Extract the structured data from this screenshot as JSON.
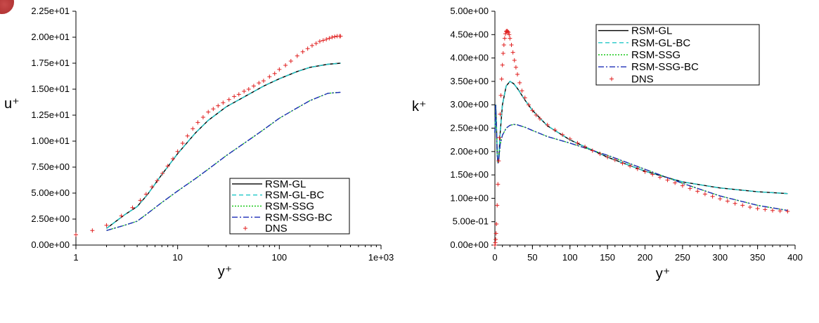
{
  "colors": {
    "RSM-GL": "#000000",
    "RSM-GL-BC": "#20c8c8",
    "RSM-SSG": "#18c818",
    "RSM-SSG-BC": "#1f2fb8",
    "DNS": "#e02020"
  },
  "chart_data": [
    {
      "type": "line",
      "xscale": "log",
      "xlim": [
        1,
        1000
      ],
      "ylim": [
        0,
        22.5
      ],
      "xticks": [
        1,
        10,
        100,
        1000
      ],
      "xtick_labels": [
        "1",
        "10",
        "100",
        "1e+03"
      ],
      "yticks": [
        0,
        2.5,
        5,
        7.5,
        10,
        12.5,
        15,
        17.5,
        20,
        22.5
      ],
      "ytick_labels": [
        "0.00e+00",
        "2.50e+00",
        "5.00e+00",
        "7.50e+00",
        "1.00e+01",
        "1.25e+01",
        "1.50e+01",
        "1.75e+01",
        "2.00e+01",
        "2.25e+01"
      ],
      "xlabel": "y⁺",
      "ylabel": "u⁺",
      "legend_position": "lower-right",
      "legend": [
        "RSM-GL",
        "RSM-GL-BC",
        "RSM-SSG",
        "RSM-SSG-BC",
        "DNS"
      ],
      "series": [
        {
          "name": "RSM-GL",
          "style": "solid",
          "x": [
            2,
            3,
            4,
            5,
            7,
            10,
            15,
            20,
            30,
            50,
            70,
            100,
            150,
            200,
            300,
            400
          ],
          "y": [
            1.6,
            2.9,
            3.7,
            4.8,
            6.8,
            8.8,
            10.8,
            12.0,
            13.3,
            14.5,
            15.3,
            16.0,
            16.7,
            17.1,
            17.4,
            17.5
          ]
        },
        {
          "name": "RSM-GL-BC",
          "style": "dash",
          "x": [
            2,
            3,
            4,
            5,
            7,
            10,
            15,
            20,
            30,
            50,
            70,
            100,
            150,
            200,
            300,
            400
          ],
          "y": [
            1.6,
            2.9,
            3.7,
            4.8,
            6.8,
            8.8,
            10.8,
            12.0,
            13.3,
            14.5,
            15.3,
            16.0,
            16.7,
            17.1,
            17.4,
            17.5
          ]
        },
        {
          "name": "RSM-SSG",
          "style": "dot",
          "x": [
            2,
            3,
            4,
            5,
            7,
            10,
            15,
            20,
            30,
            50,
            70,
            100,
            150,
            200,
            300,
            400
          ],
          "y": [
            1.4,
            1.9,
            2.3,
            3.0,
            4.1,
            5.2,
            6.4,
            7.3,
            8.6,
            10.1,
            11.1,
            12.2,
            13.2,
            13.9,
            14.6,
            14.7
          ]
        },
        {
          "name": "RSM-SSG-BC",
          "style": "dashdot",
          "x": [
            2,
            3,
            4,
            5,
            7,
            10,
            15,
            20,
            30,
            50,
            70,
            100,
            150,
            200,
            300,
            400
          ],
          "y": [
            1.4,
            1.9,
            2.3,
            3.0,
            4.1,
            5.2,
            6.4,
            7.3,
            8.6,
            10.1,
            11.1,
            12.2,
            13.2,
            13.9,
            14.6,
            14.7
          ]
        },
        {
          "name": "DNS",
          "style": "plus",
          "x": [
            1.0,
            1.45,
            2.0,
            2.8,
            3.6,
            4.3,
            4.9,
            5.6,
            6.3,
            7.1,
            8.0,
            9.0,
            10.0,
            11.2,
            12.5,
            14.1,
            15.8,
            17.8,
            20,
            22.4,
            25,
            28,
            32,
            36,
            40,
            45,
            50,
            56,
            63,
            70,
            80,
            90,
            100,
            115,
            130,
            150,
            170,
            190,
            210,
            230,
            250,
            270,
            290,
            310,
            330,
            350,
            370,
            390,
            400
          ],
          "y": [
            1.0,
            1.4,
            1.9,
            2.8,
            3.6,
            4.3,
            4.9,
            5.6,
            6.2,
            6.9,
            7.6,
            8.3,
            9.0,
            9.8,
            10.5,
            11.2,
            11.8,
            12.3,
            12.8,
            13.1,
            13.4,
            13.7,
            14.0,
            14.3,
            14.5,
            14.8,
            15.0,
            15.3,
            15.6,
            15.8,
            16.2,
            16.5,
            16.9,
            17.3,
            17.7,
            18.2,
            18.6,
            18.9,
            19.2,
            19.4,
            19.6,
            19.7,
            19.8,
            19.9,
            20.0,
            20.05,
            20.1,
            20.1,
            20.1
          ]
        }
      ]
    },
    {
      "type": "line",
      "xscale": "linear",
      "xlim": [
        0,
        400
      ],
      "ylim": [
        0,
        5
      ],
      "xticks": [
        0,
        50,
        100,
        150,
        200,
        250,
        300,
        350,
        400
      ],
      "xtick_labels": [
        "0",
        "50",
        "100",
        "150",
        "200",
        "250",
        "300",
        "350",
        "400"
      ],
      "yticks": [
        0,
        0.5,
        1,
        1.5,
        2,
        2.5,
        3,
        3.5,
        4,
        4.5,
        5
      ],
      "ytick_labels": [
        "0.00e+00",
        "5.00e-01",
        "1.00e+00",
        "1.50e+00",
        "2.00e+00",
        "2.50e+00",
        "3.00e+00",
        "3.50e+00",
        "4.00e+00",
        "4.50e+00",
        "5.00e+00"
      ],
      "xlabel": "y⁺",
      "ylabel": "k⁺",
      "legend_position": "upper-center",
      "legend": [
        "RSM-GL",
        "RSM-GL-BC",
        "RSM-SSG",
        "RSM-SSG-BC",
        "DNS"
      ],
      "series": [
        {
          "name": "RSM-GL",
          "style": "solid",
          "x": [
            0,
            1,
            2,
            3,
            4,
            5,
            7,
            10,
            15,
            20,
            25,
            30,
            40,
            50,
            70,
            100,
            150,
            200,
            250,
            300,
            350,
            390
          ],
          "y": [
            2.4,
            3.0,
            2.6,
            2.0,
            1.75,
            1.8,
            2.4,
            3.0,
            3.4,
            3.5,
            3.45,
            3.35,
            3.1,
            2.88,
            2.55,
            2.25,
            1.88,
            1.58,
            1.35,
            1.22,
            1.14,
            1.1
          ]
        },
        {
          "name": "RSM-GL-BC",
          "style": "dash",
          "x": [
            0,
            1,
            2,
            3,
            4,
            5,
            7,
            10,
            15,
            20,
            25,
            30,
            40,
            50,
            70,
            100,
            150,
            200,
            250,
            300,
            350,
            390
          ],
          "y": [
            2.4,
            3.0,
            2.6,
            2.0,
            1.75,
            1.8,
            2.4,
            3.0,
            3.4,
            3.5,
            3.45,
            3.35,
            3.1,
            2.88,
            2.55,
            2.25,
            1.88,
            1.58,
            1.35,
            1.22,
            1.14,
            1.1
          ]
        },
        {
          "name": "RSM-SSG",
          "style": "dot",
          "x": [
            0,
            1,
            2,
            3,
            4,
            5,
            7,
            10,
            15,
            20,
            25,
            30,
            40,
            50,
            70,
            100,
            150,
            200,
            250,
            300,
            350,
            390
          ],
          "y": [
            2.4,
            3.0,
            2.5,
            1.95,
            1.75,
            1.8,
            2.15,
            2.35,
            2.5,
            2.56,
            2.58,
            2.57,
            2.52,
            2.45,
            2.32,
            2.18,
            1.92,
            1.62,
            1.32,
            1.05,
            0.85,
            0.74
          ]
        },
        {
          "name": "RSM-SSG-BC",
          "style": "dashdot",
          "x": [
            0,
            1,
            2,
            3,
            4,
            5,
            7,
            10,
            15,
            20,
            25,
            30,
            40,
            50,
            70,
            100,
            150,
            200,
            250,
            300,
            350,
            390
          ],
          "y": [
            2.4,
            3.0,
            2.5,
            1.95,
            1.75,
            1.8,
            2.15,
            2.35,
            2.5,
            2.56,
            2.58,
            2.57,
            2.52,
            2.45,
            2.32,
            2.18,
            1.92,
            1.62,
            1.32,
            1.05,
            0.85,
            0.74
          ]
        },
        {
          "name": "DNS",
          "style": "plus",
          "x": [
            0,
            0.5,
            1,
            1.5,
            2,
            3,
            4,
            5,
            6,
            7,
            8,
            9,
            10,
            11,
            12,
            13,
            14,
            15,
            16,
            17,
            18,
            19,
            20,
            22,
            24,
            26,
            28,
            30,
            33,
            36,
            40,
            45,
            50,
            55,
            60,
            70,
            80,
            90,
            100,
            110,
            120,
            130,
            140,
            150,
            160,
            170,
            180,
            190,
            200,
            210,
            220,
            230,
            240,
            250,
            260,
            270,
            280,
            290,
            300,
            310,
            320,
            330,
            340,
            350,
            360,
            370,
            380,
            390
          ],
          "y": [
            0.0,
            0.05,
            0.12,
            0.25,
            0.45,
            0.85,
            1.3,
            1.8,
            2.3,
            2.8,
            3.2,
            3.55,
            3.85,
            4.1,
            4.28,
            4.42,
            4.52,
            4.57,
            4.58,
            4.57,
            4.55,
            4.5,
            4.42,
            4.28,
            4.12,
            3.95,
            3.8,
            3.65,
            3.47,
            3.3,
            3.15,
            3.0,
            2.88,
            2.78,
            2.7,
            2.57,
            2.46,
            2.36,
            2.27,
            2.18,
            2.1,
            2.02,
            1.95,
            1.88,
            1.82,
            1.75,
            1.69,
            1.63,
            1.57,
            1.51,
            1.45,
            1.39,
            1.33,
            1.27,
            1.21,
            1.15,
            1.09,
            1.04,
            0.99,
            0.94,
            0.89,
            0.85,
            0.81,
            0.78,
            0.76,
            0.74,
            0.73,
            0.72
          ]
        }
      ]
    }
  ]
}
